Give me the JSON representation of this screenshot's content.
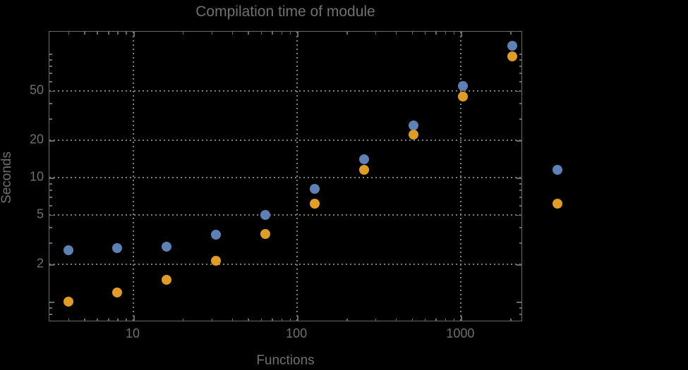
{
  "title": "Compilation time of module",
  "chart_data": {
    "type": "scatter",
    "title": "Compilation time of module",
    "xlabel": "Functions",
    "ylabel": "Seconds",
    "x_scale": "log",
    "y_scale": "log",
    "x_range": [
      3.1,
      2400
    ],
    "y_range": [
      0.69,
      150
    ],
    "grid": "dotted gridlines at labeled ticks only",
    "legend_position": "outside-right (markers only, labels not visible)",
    "x": [
      4,
      8,
      16,
      32,
      64,
      128,
      256,
      512,
      1024,
      2048
    ],
    "series": [
      {
        "name": "series-1",
        "color": "#5E81B5",
        "values": [
          2.6,
          2.7,
          2.76,
          3.45,
          5.0,
          8.1,
          14.0,
          26.3,
          54.5,
          115
        ]
      },
      {
        "name": "series-2",
        "color": "#E19C24",
        "values": [
          1.0,
          1.19,
          1.5,
          2.14,
          3.5,
          6.2,
          11.6,
          22.2,
          45.0,
          95
        ]
      }
    ],
    "x_ticks_labeled": [
      10,
      100,
      1000
    ],
    "x_ticks_minor": [
      4,
      5,
      6,
      7,
      8,
      9,
      20,
      30,
      40,
      50,
      60,
      70,
      80,
      90,
      200,
      300,
      400,
      500,
      600,
      700,
      800,
      900,
      2000
    ],
    "y_ticks_labeled": [
      2,
      5,
      10,
      20,
      50
    ],
    "y_ticks_major_unlabeled": [
      1
    ],
    "y_ticks_minor": [
      0.8,
      0.9,
      3,
      4,
      6,
      7,
      8,
      9,
      30,
      40,
      60,
      70,
      80,
      90,
      100
    ]
  },
  "legend": {
    "markers": [
      {
        "name": "series-1-marker",
        "color": "#5E81B5"
      },
      {
        "name": "series-2-marker",
        "color": "#E19C24"
      }
    ]
  },
  "colors": {
    "background": "#000000",
    "frame": "#6b6b6b",
    "grid": "#7d7d7d",
    "text": "#6f6f6f",
    "series1": "#5E81B5",
    "series2": "#E19C24"
  }
}
